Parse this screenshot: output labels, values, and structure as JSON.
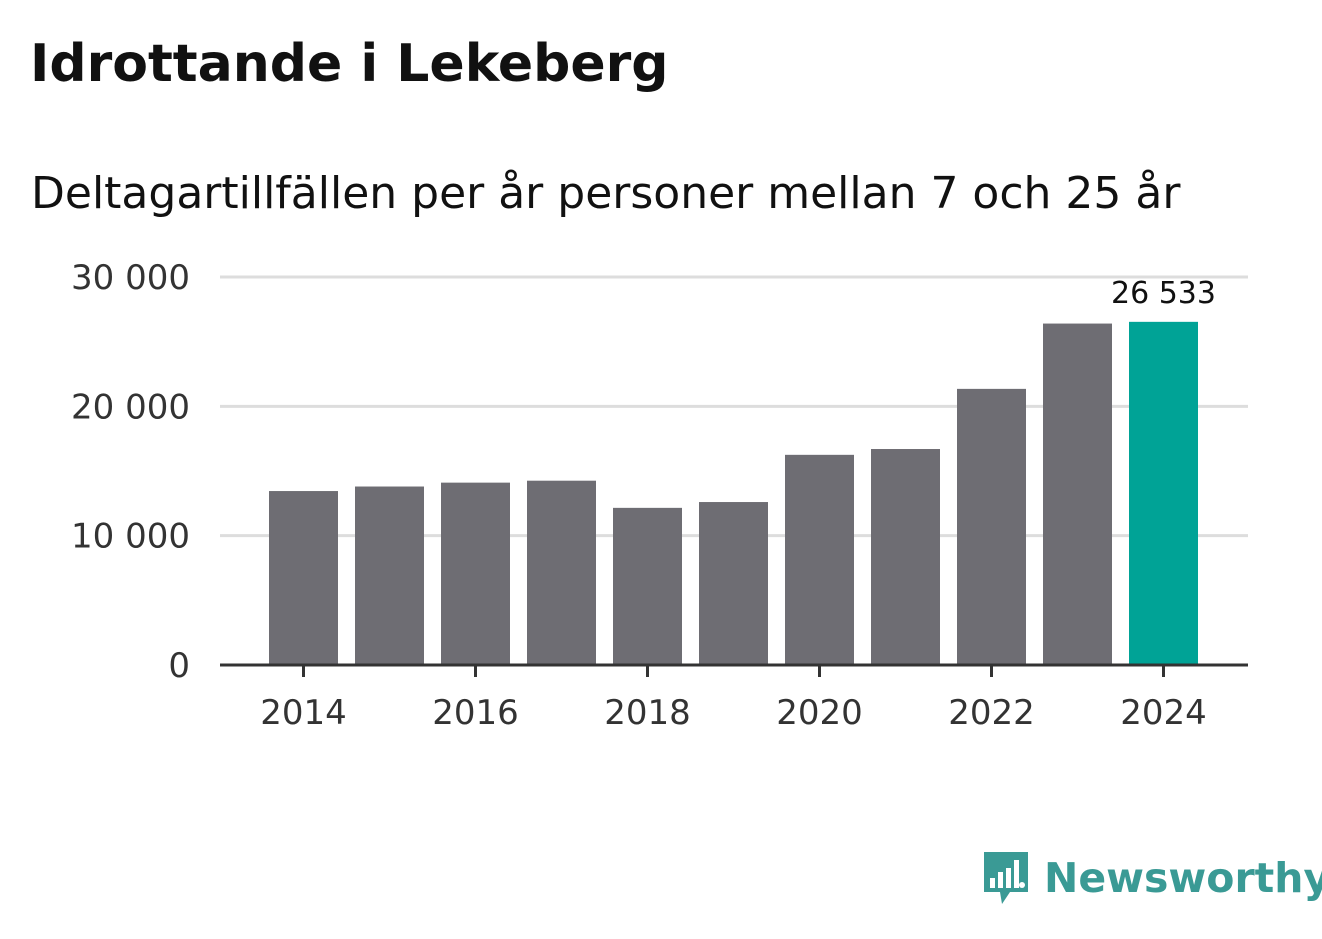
{
  "chart_data": {
    "type": "bar",
    "title": "Idrottande i Lekeberg",
    "subtitle": "Deltagartillfällen per år personer mellan 7 och 25 år",
    "xlabel": "",
    "ylabel": "",
    "categories": [
      "2014",
      "2015",
      "2016",
      "2017",
      "2018",
      "2019",
      "2020",
      "2021",
      "2022",
      "2023",
      "2024"
    ],
    "values": [
      13450,
      13800,
      14100,
      14250,
      12150,
      12600,
      16250,
      16700,
      21350,
      26400,
      26533
    ],
    "ylim": [
      0,
      30000
    ],
    "y_ticks": [
      {
        "value": 0,
        "label": "0"
      },
      {
        "value": 10000,
        "label": "10 000"
      },
      {
        "value": 20000,
        "label": "20 000"
      },
      {
        "value": 30000,
        "label": "30 000"
      }
    ],
    "x_ticks": [
      "2014",
      "2016",
      "2018",
      "2020",
      "2022",
      "2024"
    ],
    "highlight_index": 10,
    "highlight_label": "26 533",
    "colors": {
      "bar": "#6e6d73",
      "highlight": "#00a396",
      "grid": "#dddddd",
      "axis": "#333333"
    },
    "grid": true
  },
  "brand": {
    "name": "Newsworthy",
    "color": "#3a9a95",
    "icon": "newsworthy-logo-icon"
  }
}
